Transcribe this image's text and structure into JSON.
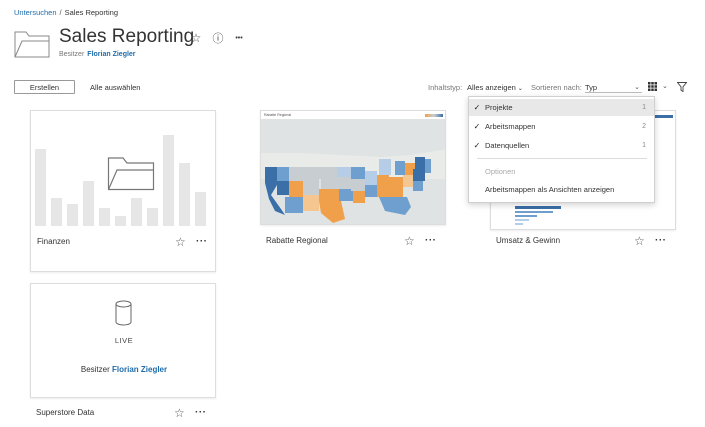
{
  "breadcrumb": {
    "root": "Untersuchen",
    "sep": "/",
    "current": "Sales Reporting"
  },
  "header": {
    "title": "Sales Reporting",
    "owner_label": "Besitzer",
    "owner_name": "Florian Ziegler",
    "star_icon": "☆",
    "info_icon": "ⓘ",
    "more_icon": "•••"
  },
  "toolbar": {
    "create_label": "Erstellen",
    "select_all_label": "Alle auswählen",
    "content_type_label": "Inhaltstyp:",
    "content_type_value": "Alles anzeigen",
    "sort_label": "Sortieren nach:",
    "sort_value": "Typ",
    "view_icon": "grid-icon",
    "filter_icon": "filter-icon"
  },
  "dropdown": {
    "items": [
      {
        "label": "Projekte",
        "checked": true,
        "count": "1"
      },
      {
        "label": "Arbeitsmappen",
        "checked": true,
        "count": "2"
      },
      {
        "label": "Datenquellen",
        "checked": true,
        "count": "1"
      }
    ],
    "options_header": "Optionen",
    "option_item": "Arbeitsmappen als Ansichten anzeigen"
  },
  "cards": {
    "finanzen": {
      "label": "Finanzen"
    },
    "rabatte": {
      "label": "Rabatte Regional",
      "thumb_title": "Rabatte Regional"
    },
    "umsatz": {
      "label": "Umsatz & Gewinn"
    },
    "superstore": {
      "label": "Superstore Data",
      "live": "LIVE",
      "owner_label": "Besitzer",
      "owner_name": "Florian Ziegler"
    }
  },
  "colors": {
    "link": "#1f6cab",
    "map_blue_dark": "#3a6fa8",
    "map_blue": "#6f9fcf",
    "map_blue_light": "#b5cde6",
    "map_orange": "#f0a04b",
    "map_orange_light": "#f6c690",
    "map_gray": "#c8cdd2"
  }
}
